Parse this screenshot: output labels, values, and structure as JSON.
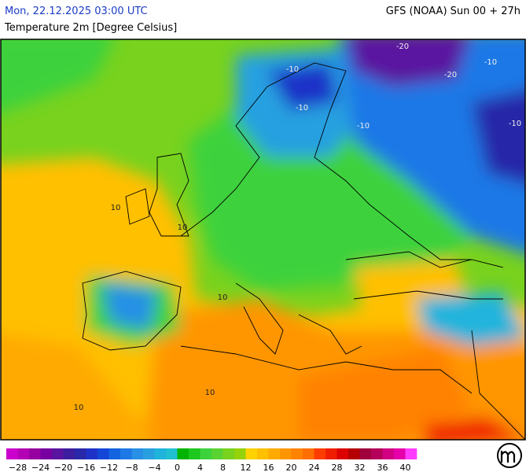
{
  "header": {
    "date": "Mon, 22.12.2025 03:00 UTC",
    "model": "GFS (NOAA) Sun 00 + 27h",
    "title": "Temperature 2m [Degree Celsius]"
  },
  "map": {
    "contour_labels": [
      "-20",
      "-10",
      "-20",
      "-10",
      "-10",
      "-10",
      "-10",
      "10",
      "10",
      "10",
      "10",
      "10"
    ]
  },
  "legend": {
    "colors": [
      "#cc00cc",
      "#b400b4",
      "#9600a0",
      "#7800a0",
      "#5a14a0",
      "#3c1e9e",
      "#2828a8",
      "#1e32c8",
      "#1446d8",
      "#1464e0",
      "#1e78e6",
      "#2890e6",
      "#28a0e0",
      "#20b4dc",
      "#20c0d0",
      "#00b400",
      "#1ec81e",
      "#3cd23c",
      "#5ad232",
      "#78d21e",
      "#96d20a",
      "#ffd200",
      "#ffc000",
      "#ffaa00",
      "#ff9600",
      "#ff8200",
      "#ff6e00",
      "#ff3c00",
      "#f01e00",
      "#dc0000",
      "#b40000",
      "#a0003c",
      "#b4005a",
      "#d20082",
      "#e600aa",
      "#ff3cff"
    ],
    "labels": [
      "−28",
      "−24",
      "−20",
      "−16",
      "−12",
      "−8",
      "−4",
      "0",
      "4",
      "8",
      "12",
      "16",
      "20",
      "24",
      "28",
      "32",
      "36",
      "40"
    ]
  }
}
